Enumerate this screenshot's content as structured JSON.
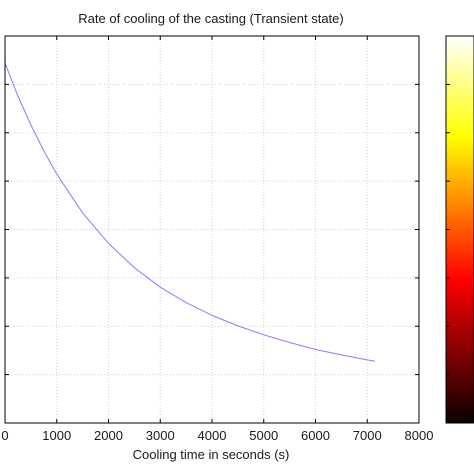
{
  "chart_data": {
    "type": "line",
    "title": "Rate of cooling of the casting (Transient state)",
    "xlabel": "Cooling time in seconds (s)",
    "ylabel": "",
    "xlim": [
      0,
      8000
    ],
    "x_ticks": [
      "0",
      "1000",
      "2000",
      "3000",
      "4000",
      "5000",
      "6000",
      "7000",
      "8000"
    ],
    "grid": true,
    "colorbar": {
      "placement": "right",
      "colormap": "hot"
    },
    "series": [
      {
        "color": "#8080ff",
        "x": [
          0,
          250,
          500,
          750,
          1000,
          1500,
          2000,
          2500,
          3000,
          3500,
          4000,
          4500,
          5000,
          5500,
          6000,
          6500,
          7000,
          7150
        ],
        "y": [
          0.93,
          0.845,
          0.77,
          0.703,
          0.643,
          0.543,
          0.464,
          0.401,
          0.351,
          0.311,
          0.278,
          0.251,
          0.228,
          0.208,
          0.19,
          0.176,
          0.163,
          0.16
        ]
      }
    ]
  },
  "colors": {
    "line": "#8080ff",
    "grid": "#d0d0d0",
    "axes": "#000000"
  }
}
